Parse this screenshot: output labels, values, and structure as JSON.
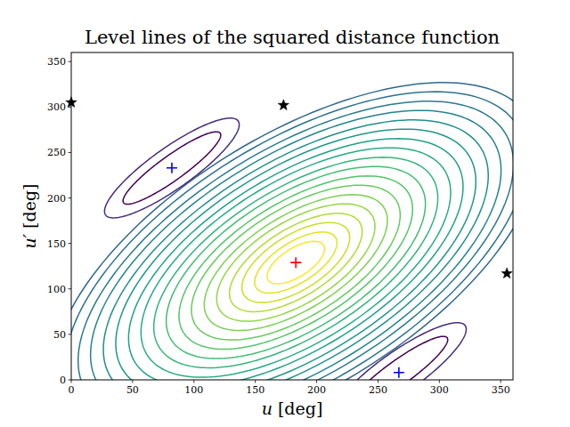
{
  "chart_data": {
    "type": "contour",
    "title": "Level lines of the squared distance function",
    "x_label": "u [deg]",
    "y_label": "u′ [deg]",
    "xlim": [
      0,
      360
    ],
    "ylim": [
      0,
      360
    ],
    "xticks": [
      0,
      50,
      100,
      150,
      200,
      250,
      300,
      350
    ],
    "yticks": [
      0,
      50,
      100,
      150,
      200,
      250,
      300,
      350
    ],
    "contours": [
      {
        "color": "#fde725",
        "center": [
          183,
          129
        ],
        "semi_axes": [
          30,
          14
        ],
        "angle": 45
      },
      {
        "color": "#e2e418",
        "center": [
          183,
          129
        ],
        "semi_axes": [
          43,
          20
        ],
        "angle": 45
      },
      {
        "color": "#c8e020",
        "center": [
          183,
          129
        ],
        "semi_axes": [
          56,
          27
        ],
        "angle": 45
      },
      {
        "color": "#addc30",
        "center": [
          183,
          129
        ],
        "semi_axes": [
          69,
          33
        ],
        "angle": 45
      },
      {
        "color": "#93d741",
        "center": [
          183,
          129
        ],
        "semi_axes": [
          82,
          40
        ],
        "angle": 45
      },
      {
        "color": "#7ad151",
        "center": [
          183,
          129
        ],
        "semi_axes": [
          95,
          46
        ],
        "angle": 45
      },
      {
        "color": "#65cb5e",
        "center": [
          183,
          129
        ],
        "semi_axes": [
          108,
          53
        ],
        "angle": 45
      },
      {
        "color": "#52c569",
        "center": [
          183,
          129
        ],
        "semi_axes": [
          121,
          59
        ],
        "angle": 45
      },
      {
        "color": "#40bd72",
        "center": [
          183,
          129
        ],
        "semi_axes": [
          134,
          66
        ],
        "angle": 45
      },
      {
        "color": "#31b57b",
        "center": [
          183,
          129
        ],
        "semi_axes": [
          147,
          72
        ],
        "angle": 45
      },
      {
        "color": "#25ac82",
        "center": [
          183,
          129
        ],
        "semi_axes": [
          160,
          79
        ],
        "angle": 45
      },
      {
        "color": "#1fa188",
        "center": [
          183,
          129
        ],
        "semi_axes": [
          173,
          85
        ],
        "angle": 45
      },
      {
        "color": "#1f978b",
        "center": [
          183,
          129
        ],
        "semi_axes": [
          186,
          92
        ],
        "angle": 45
      },
      {
        "color": "#218e8d",
        "center": [
          183,
          129
        ],
        "semi_axes": [
          199,
          98
        ],
        "angle": 45
      },
      {
        "color": "#23848e",
        "center": [
          183,
          129
        ],
        "semi_axes": [
          212,
          105
        ],
        "angle": 45
      },
      {
        "color": "#297a8e",
        "center": [
          183,
          129
        ],
        "semi_axes": [
          225,
          111
        ],
        "angle": 45
      },
      {
        "color": "#2c728e",
        "center": [
          183,
          129
        ],
        "semi_axes": [
          238,
          118
        ],
        "angle": 45
      },
      {
        "color": "#31688e",
        "center": [
          183,
          129
        ],
        "semi_axes": [
          251,
          124
        ],
        "angle": 45
      },
      {
        "color": "#440154",
        "center": [
          82,
          233
        ],
        "semi_axes": [
          55,
          12
        ],
        "angle": 45
      },
      {
        "color": "#472d7b",
        "center": [
          82,
          233
        ],
        "semi_axes": [
          75,
          20
        ],
        "angle": 45
      },
      {
        "color": "#440154",
        "center": [
          267,
          8
        ],
        "semi_axes": [
          55,
          12
        ],
        "angle": 45
      },
      {
        "color": "#472d7b",
        "center": [
          267,
          8
        ],
        "semi_axes": [
          75,
          20
        ],
        "angle": 45
      }
    ],
    "series": [
      {
        "type": "scatter",
        "marker": "plus",
        "color": "#ff0000",
        "x": [
          183
        ],
        "values": [
          129
        ]
      },
      {
        "type": "scatter",
        "marker": "plus",
        "color": "#0000ff",
        "x": [
          82,
          267
        ],
        "values": [
          233,
          8
        ]
      },
      {
        "type": "scatter",
        "marker": "star",
        "color": "#000000",
        "x": [
          0,
          173,
          355
        ],
        "values": [
          305,
          302,
          117
        ]
      }
    ]
  }
}
